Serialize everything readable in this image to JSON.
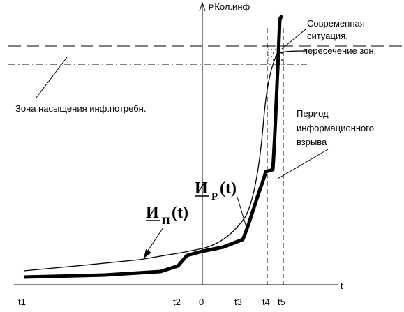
{
  "chart_data": {
    "type": "line",
    "y_axis_label": "P",
    "y_axis_label_sub": "Кол.инф",
    "x_axis_label": "t",
    "x_ticks": [
      "t1",
      "t2",
      "0",
      "t3",
      "t4",
      "t5"
    ],
    "annotations": {
      "zone": "Зона насыщения  инф.потребн.",
      "current_line1": "Современная",
      "current_line2": "ситуация,",
      "current_line3": "пересечение зон.",
      "period_line1": "Период",
      "period_line2": "информационного",
      "period_line3": "взрыва"
    },
    "series": [
      {
        "name_main": "И",
        "name_sub": "П",
        "name_tail": "(t)",
        "style": "thin"
      },
      {
        "name_main": "И",
        "name_sub": "Р",
        "name_tail": "(t)",
        "style": "thick"
      }
    ]
  }
}
